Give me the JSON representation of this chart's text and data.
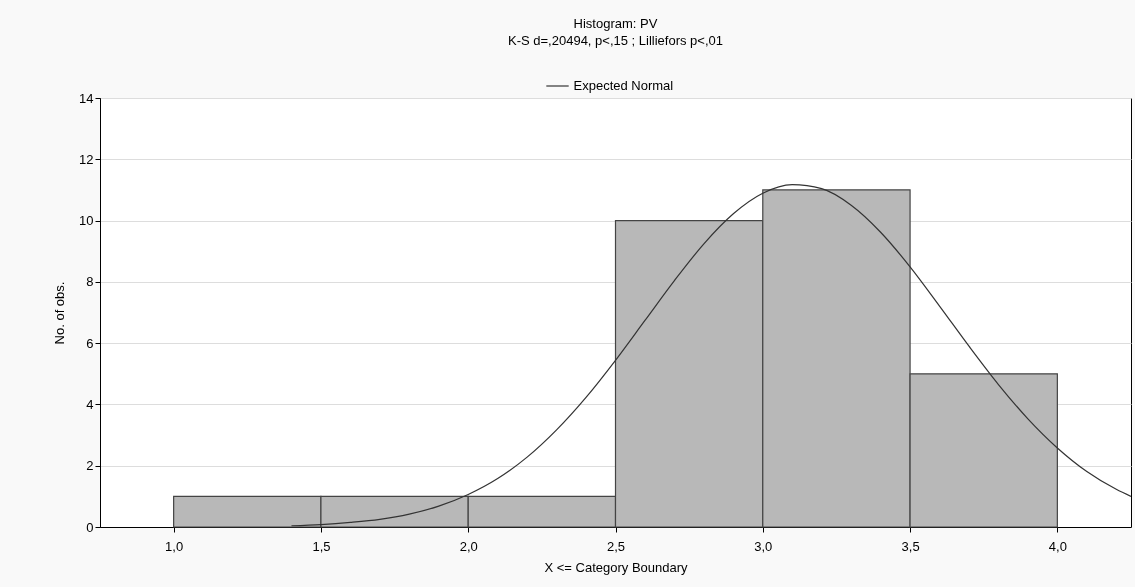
{
  "chart_data": {
    "type": "histogram",
    "title": "Histogram: PV",
    "subtitle": "K-S d=,20494, p<,15 ; Lilliefors p<,01",
    "xlabel": "X <= Category Boundary",
    "ylabel": "No. of obs.",
    "bins": [
      1.0,
      1.5,
      2.0,
      2.5,
      3.0,
      3.5,
      4.0
    ],
    "series": [
      {
        "color": "#b8b8b8",
        "values": [
          1,
          1,
          1,
          10,
          11,
          5
        ]
      },
      {
        "type": "line",
        "name": "Expected Normal",
        "color": "#333333",
        "x": [
          1.4,
          1.5,
          1.6,
          1.7,
          1.8,
          1.9,
          2.0,
          2.1,
          2.2,
          2.3,
          2.4,
          2.5,
          2.6,
          2.7,
          2.8,
          2.9,
          3.0,
          3.1,
          3.2,
          3.3,
          3.4,
          3.5,
          3.6,
          3.7,
          3.8,
          3.9,
          4.0,
          4.1,
          4.2,
          4.25
        ],
        "values": [
          0.04,
          0.08,
          0.15,
          0.25,
          0.42,
          0.68,
          1.06,
          1.58,
          2.28,
          3.17,
          4.23,
          5.44,
          6.74,
          8.04,
          9.24,
          10.22,
          10.89,
          11.17,
          11.04,
          10.5,
          9.62,
          8.49,
          7.21,
          5.9,
          4.65,
          3.53,
          2.58,
          1.81,
          1.23,
          1.0
        ]
      }
    ],
    "xlim": [
      0.75,
      4.25
    ],
    "xticks": [
      {
        "value": 1.0,
        "label": "1,0"
      },
      {
        "value": 1.5,
        "label": "1,5"
      },
      {
        "value": 2.0,
        "label": "2,0"
      },
      {
        "value": 2.5,
        "label": "2,5"
      },
      {
        "value": 3.0,
        "label": "3,0"
      },
      {
        "value": 3.5,
        "label": "3,5"
      },
      {
        "value": 4.0,
        "label": "4,0"
      }
    ],
    "ylim": [
      0,
      14
    ],
    "yticks": [
      0,
      2,
      4,
      6,
      8,
      10,
      12,
      14
    ],
    "grid": "y",
    "legend": "top",
    "marker": "none",
    "line_style": "solid"
  }
}
